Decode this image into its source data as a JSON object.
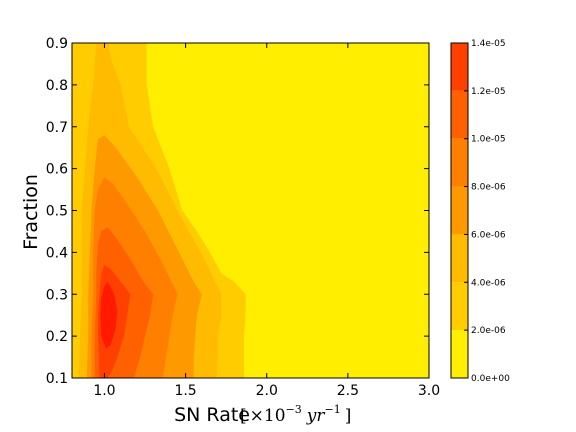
{
  "chart_data": {
    "type": "heatmap",
    "subtype": "filled-contour",
    "title": "",
    "xlabel": "SN Rate",
    "xlabel_unit": {
      "open": "[",
      "times": "×10",
      "exp": "−3",
      "unit": "yr",
      "unit_exp": "−1",
      "close": "]"
    },
    "ylabel": "Fraction",
    "xlim": [
      0.8,
      3.0
    ],
    "ylim": [
      0.1,
      0.9
    ],
    "xticks": [
      1.0,
      1.5,
      2.0,
      2.5,
      3.0
    ],
    "xtick_labels": [
      "1.0",
      "1.5",
      "2.0",
      "2.5",
      "3.0"
    ],
    "yticks": [
      0.1,
      0.2,
      0.3,
      0.4,
      0.5,
      0.6,
      0.7,
      0.8,
      0.9
    ],
    "ytick_labels": [
      "0.1",
      "0.2",
      "0.3",
      "0.4",
      "0.5",
      "0.6",
      "0.7",
      "0.8",
      "0.9"
    ],
    "colorbar": {
      "min": 0,
      "max": 1.4e-05,
      "levels": [
        0,
        2e-06,
        4e-06,
        6e-06,
        8e-06,
        1e-05,
        1.2e-05,
        1.4e-05
      ],
      "labels": [
        "0.0e+00",
        "2.0e-06",
        "4.0e-06",
        "6.0e-06",
        "8.0e-06",
        "1.0e-05",
        "1.2e-05",
        "1.4e-05"
      ],
      "band_colors": [
        "#ffee00",
        "#ffcc00",
        "#ffbb00",
        "#ff9900",
        "#ff7f00",
        "#ff6000",
        "#ff4000",
        "#ff1a00"
      ]
    },
    "peak": {
      "x": 1.0,
      "y": 0.3
    },
    "contours": [
      {
        "level_index": 1,
        "points": [
          [
            0.83,
            0.1
          ],
          [
            0.8,
            0.1
          ],
          [
            0.8,
            0.9
          ],
          [
            0.85,
            0.9
          ],
          [
            0.9,
            0.9
          ],
          [
            1.02,
            0.9
          ],
          [
            1.12,
            0.9
          ],
          [
            1.2,
            0.9
          ],
          [
            1.26,
            0.9
          ],
          [
            1.26,
            0.8
          ],
          [
            1.3,
            0.7
          ],
          [
            1.4,
            0.6
          ],
          [
            1.48,
            0.5
          ],
          [
            1.57,
            0.45
          ],
          [
            1.65,
            0.4
          ],
          [
            1.72,
            0.35
          ],
          [
            1.8,
            0.33
          ],
          [
            1.87,
            0.3
          ],
          [
            1.87,
            0.25
          ],
          [
            1.86,
            0.2
          ],
          [
            1.86,
            0.15
          ],
          [
            1.86,
            0.1
          ]
        ]
      },
      {
        "level_index": 2,
        "points": [
          [
            0.84,
            0.1
          ],
          [
            0.85,
            0.2
          ],
          [
            0.86,
            0.3
          ],
          [
            0.86,
            0.4
          ],
          [
            0.86,
            0.5
          ],
          [
            0.88,
            0.6
          ],
          [
            0.9,
            0.7
          ],
          [
            0.93,
            0.8
          ],
          [
            0.95,
            0.9
          ],
          [
            1.02,
            0.9
          ],
          [
            1.05,
            0.85
          ],
          [
            1.1,
            0.8
          ],
          [
            1.15,
            0.7
          ],
          [
            1.32,
            0.6
          ],
          [
            1.45,
            0.5
          ],
          [
            1.55,
            0.43
          ],
          [
            1.62,
            0.38
          ],
          [
            1.72,
            0.3
          ],
          [
            1.72,
            0.25
          ],
          [
            1.7,
            0.2
          ],
          [
            1.7,
            0.15
          ],
          [
            1.69,
            0.1
          ]
        ]
      },
      {
        "level_index": 3,
        "points": [
          [
            0.89,
            0.1
          ],
          [
            0.9,
            0.2
          ],
          [
            0.9,
            0.3
          ],
          [
            0.91,
            0.4
          ],
          [
            0.92,
            0.5
          ],
          [
            0.94,
            0.6
          ],
          [
            0.96,
            0.67
          ],
          [
            1.0,
            0.68
          ],
          [
            1.07,
            0.65
          ],
          [
            1.2,
            0.58
          ],
          [
            1.33,
            0.5
          ],
          [
            1.46,
            0.4
          ],
          [
            1.55,
            0.33
          ],
          [
            1.6,
            0.3
          ],
          [
            1.57,
            0.25
          ],
          [
            1.56,
            0.2
          ],
          [
            1.55,
            0.15
          ],
          [
            1.55,
            0.1
          ]
        ]
      },
      {
        "level_index": 4,
        "points": [
          [
            0.92,
            0.1
          ],
          [
            0.92,
            0.2
          ],
          [
            0.93,
            0.3
          ],
          [
            0.93,
            0.4
          ],
          [
            0.94,
            0.5
          ],
          [
            0.96,
            0.55
          ],
          [
            1.0,
            0.58
          ],
          [
            1.06,
            0.56
          ],
          [
            1.15,
            0.51
          ],
          [
            1.25,
            0.45
          ],
          [
            1.35,
            0.38
          ],
          [
            1.45,
            0.3
          ],
          [
            1.42,
            0.25
          ],
          [
            1.4,
            0.2
          ],
          [
            1.38,
            0.15
          ],
          [
            1.36,
            0.1
          ]
        ]
      },
      {
        "level_index": 5,
        "points": [
          [
            0.94,
            0.1
          ],
          [
            0.94,
            0.2
          ],
          [
            0.95,
            0.3
          ],
          [
            0.95,
            0.35
          ],
          [
            0.96,
            0.42
          ],
          [
            0.98,
            0.45
          ],
          [
            1.02,
            0.46
          ],
          [
            1.08,
            0.43
          ],
          [
            1.15,
            0.39
          ],
          [
            1.24,
            0.33
          ],
          [
            1.3,
            0.3
          ],
          [
            1.28,
            0.25
          ],
          [
            1.25,
            0.2
          ],
          [
            1.22,
            0.15
          ],
          [
            1.18,
            0.1
          ]
        ]
      },
      {
        "level_index": 6,
        "points": [
          [
            0.97,
            0.1
          ],
          [
            0.96,
            0.2
          ],
          [
            0.96,
            0.25
          ],
          [
            0.97,
            0.3
          ],
          [
            0.98,
            0.35
          ],
          [
            1.0,
            0.37
          ],
          [
            1.04,
            0.36
          ],
          [
            1.1,
            0.33
          ],
          [
            1.16,
            0.3
          ],
          [
            1.14,
            0.25
          ],
          [
            1.12,
            0.2
          ],
          [
            1.08,
            0.15
          ],
          [
            1.05,
            0.12
          ],
          [
            1.02,
            0.1
          ]
        ]
      },
      {
        "level_index": 7,
        "points": [
          [
            0.98,
            0.2
          ],
          [
            0.975,
            0.25
          ],
          [
            0.98,
            0.29
          ],
          [
            1.0,
            0.32
          ],
          [
            1.02,
            0.33
          ],
          [
            1.06,
            0.3
          ],
          [
            1.08,
            0.26
          ],
          [
            1.07,
            0.22
          ],
          [
            1.04,
            0.18
          ],
          [
            1.01,
            0.17
          ]
        ]
      }
    ]
  }
}
